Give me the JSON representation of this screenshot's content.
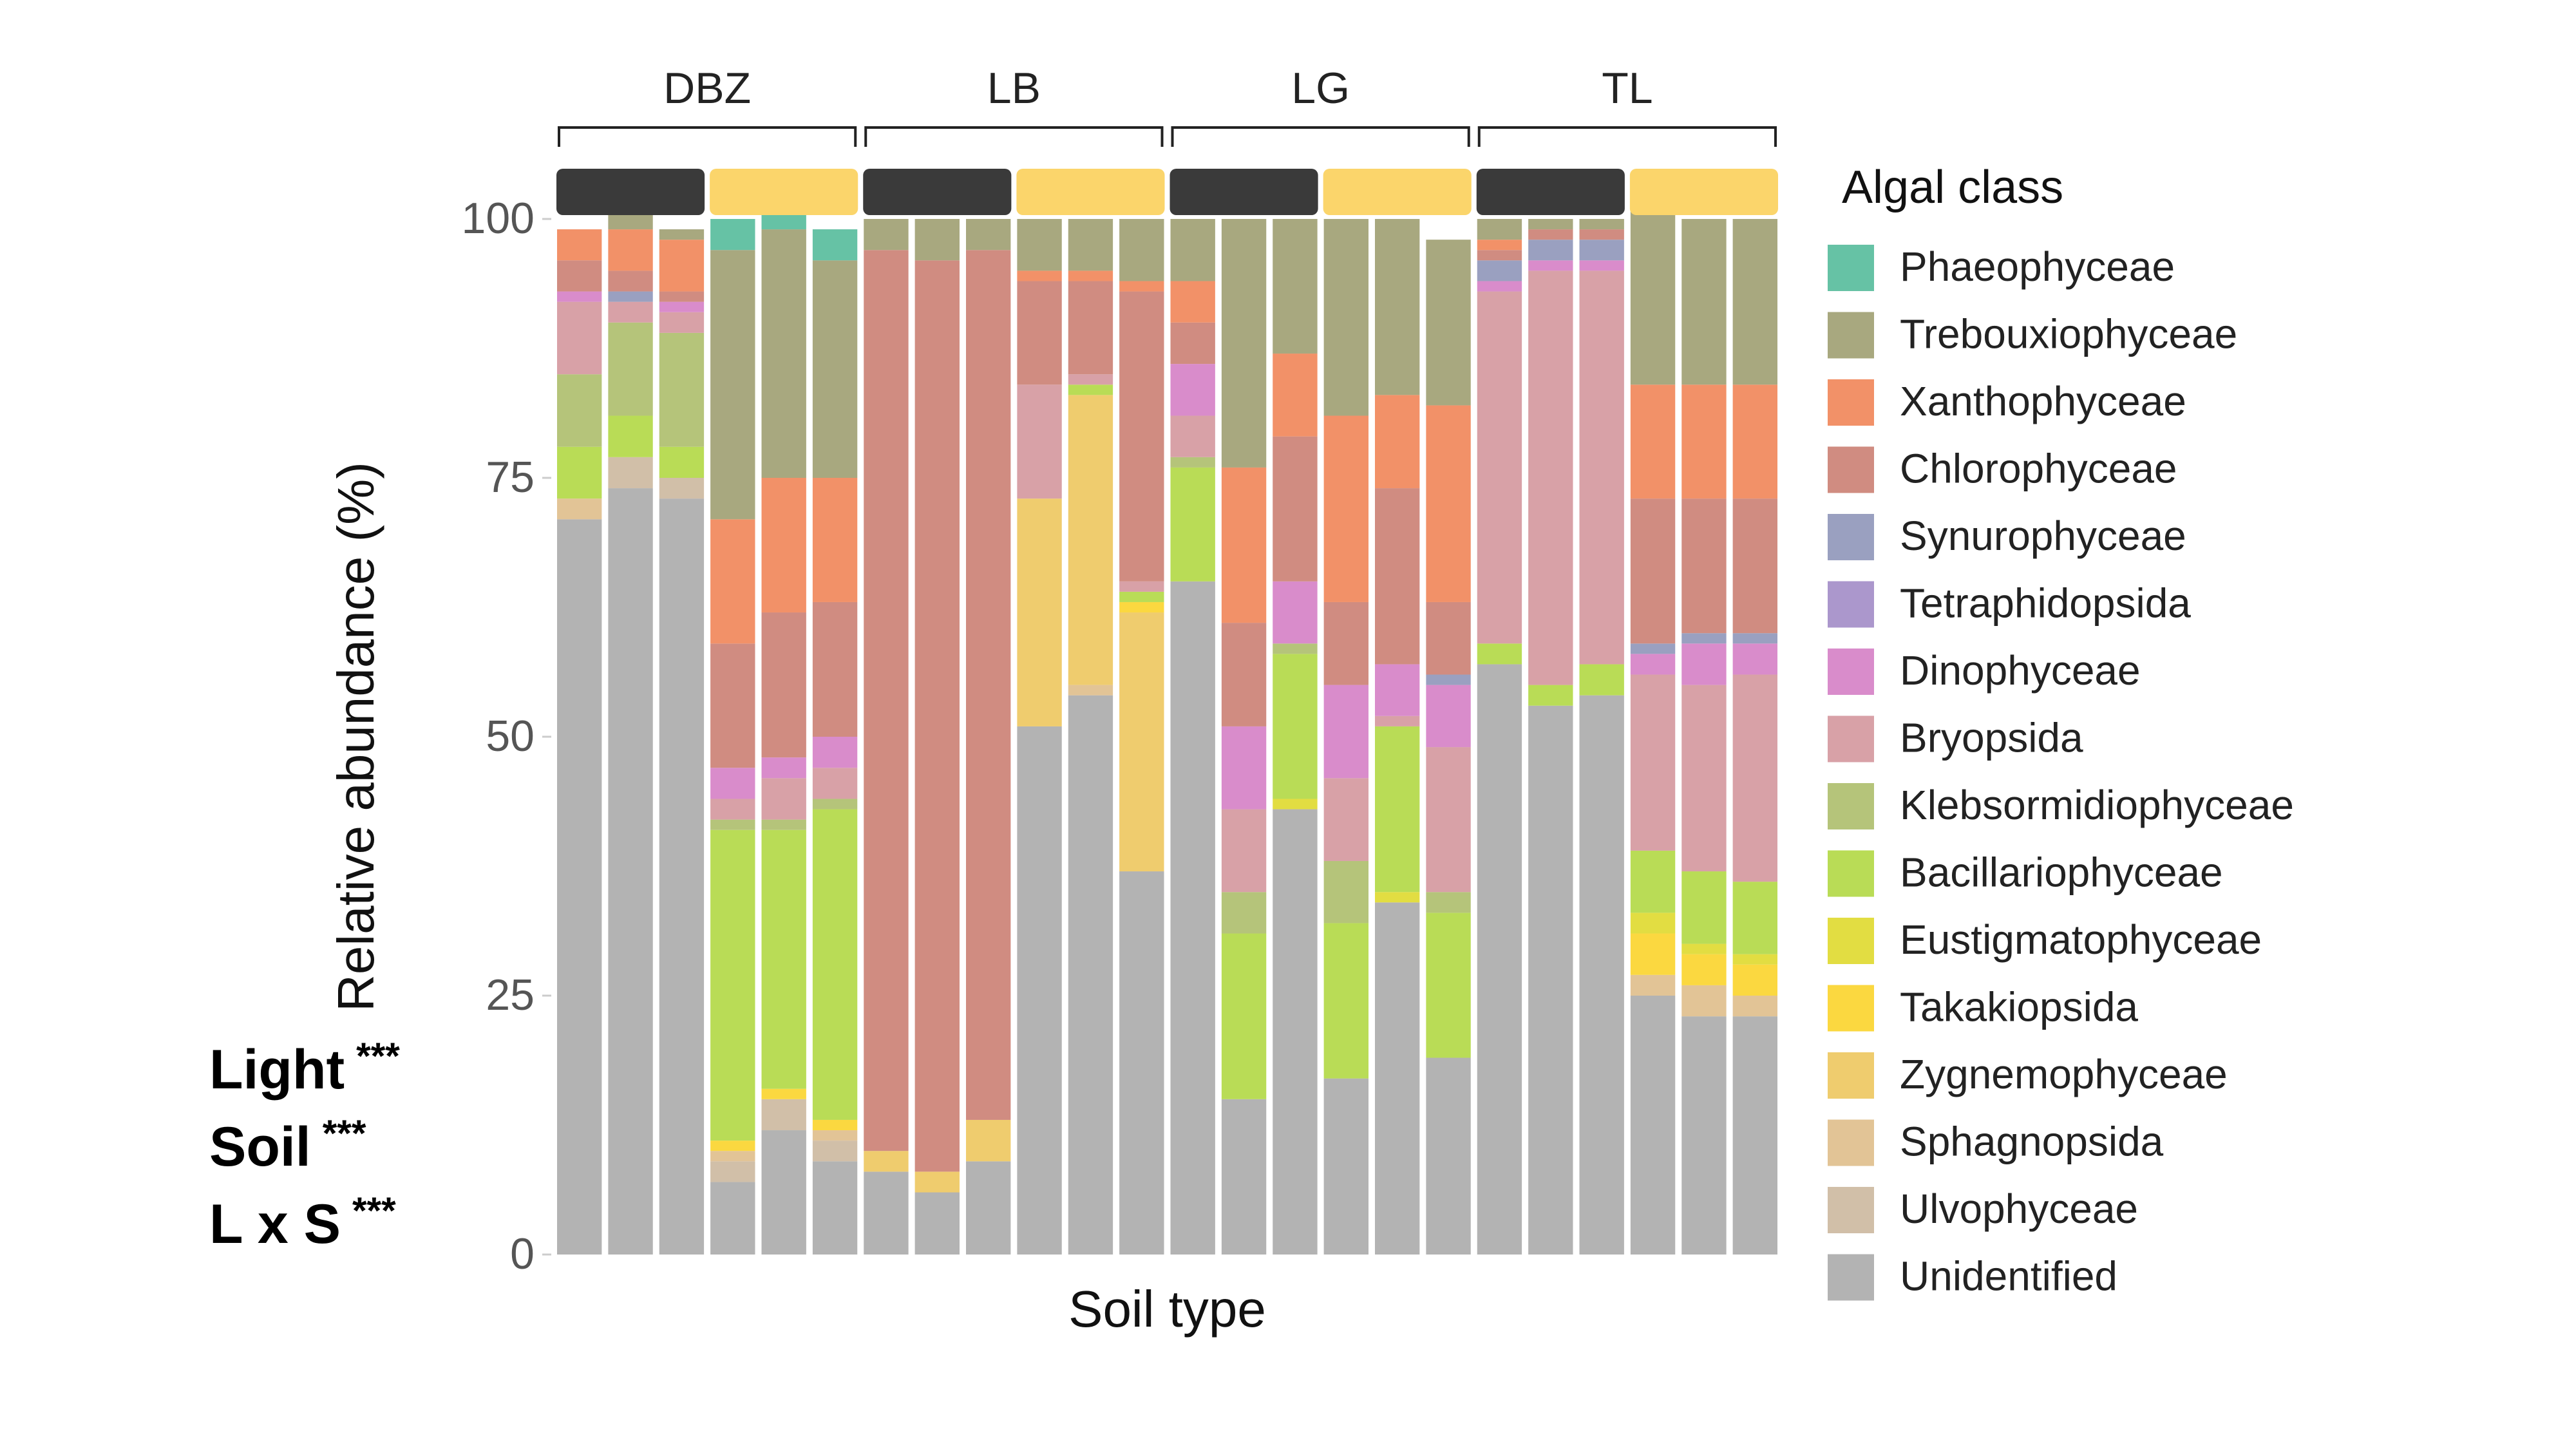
{
  "chart_data": {
    "type": "bar",
    "stacked": true,
    "ylabel": "Relative abundance (%)",
    "xlabel": "Soil type",
    "ylim": [
      0,
      100
    ],
    "yticks": [
      "0",
      "25",
      "50",
      "75",
      "100"
    ],
    "groups": [
      "DBZ",
      "LB",
      "LG",
      "TL"
    ],
    "light_treatment_colors": {
      "dark": "#3a3a3a",
      "light": "#fbd56b"
    },
    "legend": {
      "title": "Algal class",
      "placement": "right"
    },
    "stats": [
      {
        "label": "Light",
        "stars": "***"
      },
      {
        "label": "Soil",
        "stars": "***"
      },
      {
        "label": "L x S",
        "stars": "***"
      }
    ],
    "series": [
      {
        "name": "Phaeophyceae",
        "color": "#66c2a5"
      },
      {
        "name": "Trebouxiophyceae",
        "color": "#a8a87f"
      },
      {
        "name": "Xanthophyceae",
        "color": "#f29168"
      },
      {
        "name": "Chlorophyceae",
        "color": "#d08c81"
      },
      {
        "name": "Synurophyceae",
        "color": "#9aa0c0"
      },
      {
        "name": "Tetraphidopsida",
        "color": "#ab97cc"
      },
      {
        "name": "Dinophyceae",
        "color": "#d98ccb"
      },
      {
        "name": "Bryopsida",
        "color": "#d8a1a7"
      },
      {
        "name": "Klebsormidiophyceae",
        "color": "#b5c47a"
      },
      {
        "name": "Bacillariophyceae",
        "color": "#b9dc56"
      },
      {
        "name": "Eustigmatophyceae",
        "color": "#e2dd42"
      },
      {
        "name": "Takakiopsida",
        "color": "#fbd840"
      },
      {
        "name": "Zygnemophyceae",
        "color": "#efcc6e"
      },
      {
        "name": "Sphagnopsida",
        "color": "#e2c496"
      },
      {
        "name": "Ulvophyceae",
        "color": "#d1bfa8"
      },
      {
        "name": "Unidentified",
        "color": "#b3b3b3"
      }
    ],
    "bars": [
      {
        "group": "DBZ",
        "light": "dark",
        "values": [
          0,
          0,
          3,
          3,
          0,
          0,
          1,
          7,
          7,
          5,
          0,
          0,
          0,
          2,
          0,
          71
        ]
      },
      {
        "group": "DBZ",
        "light": "dark",
        "values": [
          0,
          2,
          4,
          2,
          1,
          0,
          0,
          2,
          9,
          4,
          0,
          0,
          0,
          0,
          3,
          74
        ]
      },
      {
        "group": "DBZ",
        "light": "dark",
        "values": [
          0,
          1,
          5,
          1,
          0,
          0,
          1,
          2,
          11,
          3,
          0,
          0,
          0,
          0,
          2,
          73
        ]
      },
      {
        "group": "DBZ",
        "light": "light",
        "values": [
          3,
          26,
          12,
          12,
          0,
          0,
          3,
          2,
          1,
          30,
          0,
          1,
          0,
          1,
          2,
          7
        ]
      },
      {
        "group": "DBZ",
        "light": "light",
        "values": [
          3,
          24,
          13,
          14,
          0,
          0,
          2,
          4,
          1,
          25,
          0,
          1,
          0,
          0,
          3,
          12
        ]
      },
      {
        "group": "DBZ",
        "light": "light",
        "values": [
          3,
          21,
          12,
          13,
          0,
          0,
          3,
          3,
          1,
          30,
          0,
          1,
          0,
          1,
          2,
          9
        ]
      },
      {
        "group": "LB",
        "light": "dark",
        "values": [
          0,
          3,
          0,
          87,
          0,
          0,
          0,
          0,
          0,
          0,
          0,
          0,
          2,
          0,
          0,
          8
        ]
      },
      {
        "group": "LB",
        "light": "dark",
        "values": [
          0,
          4,
          0,
          88,
          0,
          0,
          0,
          0,
          0,
          0,
          0,
          0,
          2,
          0,
          0,
          6
        ]
      },
      {
        "group": "LB",
        "light": "dark",
        "values": [
          0,
          3,
          0,
          84,
          0,
          0,
          0,
          0,
          0,
          0,
          0,
          0,
          4,
          0,
          0,
          9
        ]
      },
      {
        "group": "LB",
        "light": "light",
        "values": [
          0,
          5,
          1,
          10,
          0,
          0,
          0,
          11,
          0,
          0,
          0,
          0,
          22,
          0,
          0,
          51
        ]
      },
      {
        "group": "LB",
        "light": "light",
        "values": [
          0,
          5,
          1,
          9,
          0,
          0,
          0,
          1,
          0,
          1,
          0,
          0,
          28,
          1,
          0,
          54
        ]
      },
      {
        "group": "LB",
        "light": "light",
        "values": [
          0,
          6,
          1,
          28,
          0,
          0,
          0,
          1,
          0,
          1,
          0,
          1,
          25,
          0,
          0,
          37
        ]
      },
      {
        "group": "LG",
        "light": "dark",
        "values": [
          0,
          6,
          4,
          4,
          0,
          0,
          5,
          4,
          1,
          11,
          0,
          0,
          0,
          0,
          0,
          65
        ]
      },
      {
        "group": "LG",
        "light": "dark",
        "values": [
          0,
          24,
          15,
          10,
          0,
          0,
          8,
          8,
          4,
          16,
          0,
          0,
          0,
          0,
          0,
          15
        ]
      },
      {
        "group": "LG",
        "light": "dark",
        "values": [
          0,
          13,
          8,
          14,
          0,
          0,
          6,
          0,
          1,
          14,
          1,
          0,
          0,
          0,
          0,
          43
        ]
      },
      {
        "group": "LG",
        "light": "light",
        "values": [
          0,
          19,
          18,
          8,
          0,
          0,
          9,
          8,
          6,
          15,
          0,
          0,
          0,
          0,
          0,
          17
        ]
      },
      {
        "group": "LG",
        "light": "light",
        "values": [
          0,
          17,
          9,
          17,
          0,
          0,
          5,
          1,
          0,
          16,
          1,
          0,
          0,
          0,
          0,
          34
        ]
      },
      {
        "group": "LG",
        "light": "light",
        "values": [
          0,
          16,
          19,
          7,
          1,
          0,
          6,
          14,
          2,
          14,
          0,
          0,
          0,
          0,
          0,
          19
        ]
      },
      {
        "group": "TL",
        "light": "dark",
        "values": [
          0,
          2,
          1,
          1,
          2,
          0,
          1,
          34,
          0,
          2,
          0,
          0,
          0,
          0,
          0,
          57
        ]
      },
      {
        "group": "TL",
        "light": "dark",
        "values": [
          0,
          1,
          0,
          1,
          2,
          0,
          1,
          40,
          0,
          2,
          0,
          0,
          0,
          0,
          0,
          53
        ]
      },
      {
        "group": "TL",
        "light": "dark",
        "values": [
          0,
          1,
          0,
          1,
          2,
          0,
          1,
          38,
          0,
          3,
          0,
          0,
          0,
          0,
          0,
          54
        ]
      },
      {
        "group": "TL",
        "light": "light",
        "values": [
          0,
          18,
          11,
          14,
          1,
          0,
          2,
          17,
          0,
          6,
          2,
          4,
          0,
          2,
          0,
          25
        ]
      },
      {
        "group": "TL",
        "light": "light",
        "values": [
          0,
          16,
          11,
          13,
          1,
          0,
          4,
          18,
          0,
          7,
          1,
          3,
          0,
          3,
          0,
          23
        ]
      },
      {
        "group": "TL",
        "light": "light",
        "values": [
          0,
          16,
          11,
          13,
          1,
          0,
          3,
          20,
          0,
          7,
          1,
          3,
          0,
          2,
          0,
          23
        ]
      }
    ]
  }
}
